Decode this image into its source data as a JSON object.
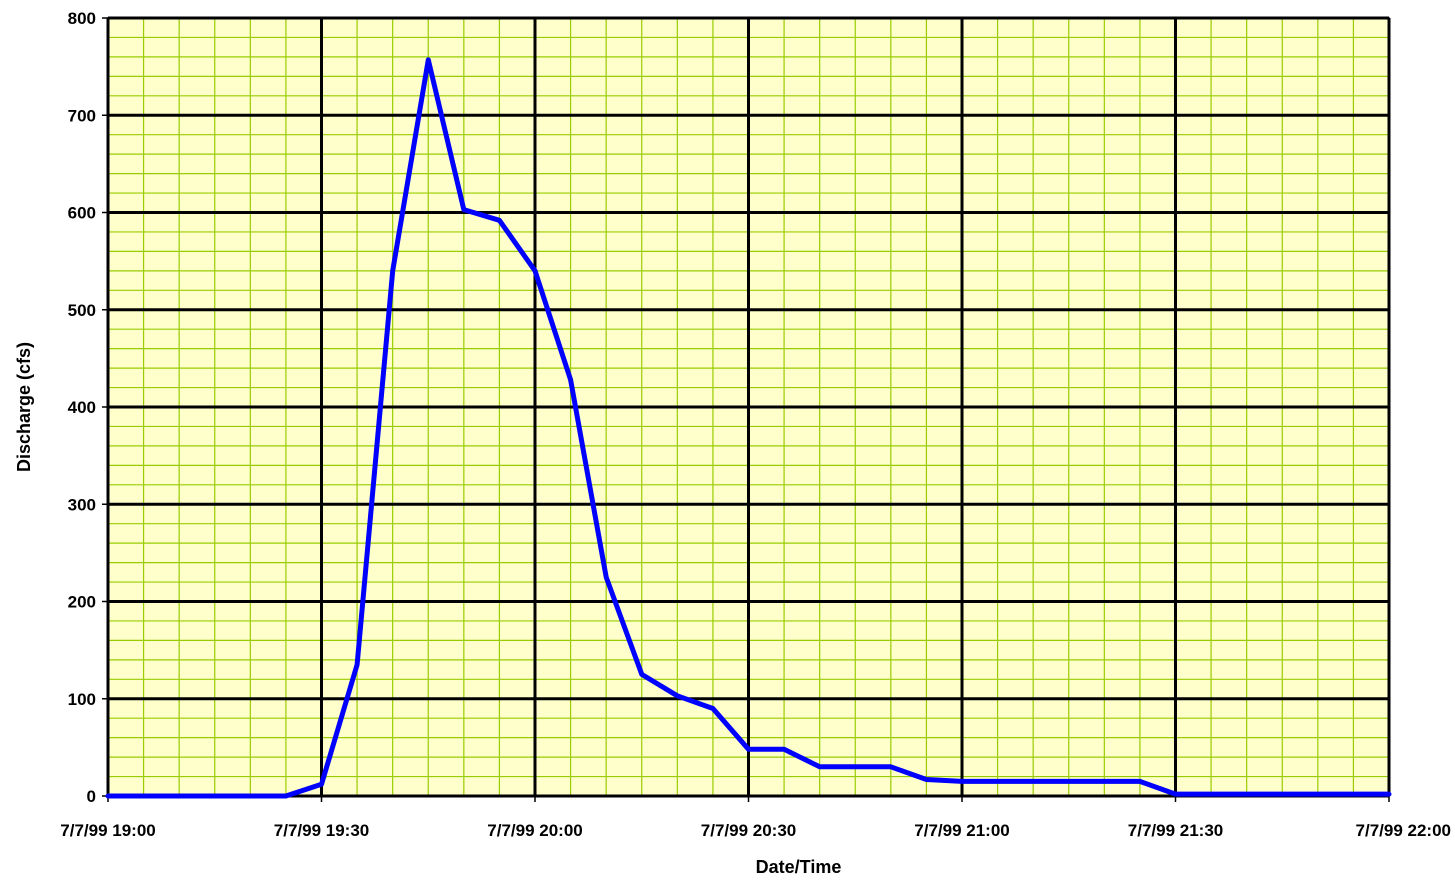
{
  "chart_data": {
    "type": "line",
    "title": "",
    "xlabel": "Date/Time",
    "ylabel": "Discharge (cfs)",
    "xlim": [
      "7/7/99 19:00",
      "7/7/99 22:00"
    ],
    "ylim": [
      0,
      800
    ],
    "y_ticks": [
      0,
      100,
      200,
      300,
      400,
      500,
      600,
      700,
      800
    ],
    "x_ticks": [
      {
        "time": "7/7/99 19:00",
        "label": "7/7/99 19:00"
      },
      {
        "time": "7/7/99 19:30",
        "label": "7/7/99 19:30"
      },
      {
        "time": "7/7/99 20:00",
        "label": "7/7/99 20:00"
      },
      {
        "time": "7/7/99 20:30",
        "label": "7/7/99 20:30"
      },
      {
        "time": "7/7/99 21:00",
        "label": "7/7/99 21:00"
      },
      {
        "time": "7/7/99 21:30",
        "label": "7/7/99 21:30"
      },
      {
        "time": "7/7/99 22:00",
        "label": "7/7/99 22:00"
      }
    ],
    "grid": {
      "major": true,
      "minor": true
    },
    "colors": {
      "plot_background": "#ffffcc",
      "minor_grid": "#99cc00",
      "major_grid": "#000000",
      "line": "#0000ff"
    },
    "series": [
      {
        "x": [
          "7/7/99 19:00",
          "7/7/99 19:25",
          "7/7/99 19:30",
          "7/7/99 19:35",
          "7/7/99 19:40",
          "7/7/99 19:45",
          "7/7/99 19:50",
          "7/7/99 19:55",
          "7/7/99 20:00",
          "7/7/99 20:05",
          "7/7/99 20:10",
          "7/7/99 20:15",
          "7/7/99 20:20",
          "7/7/99 20:25",
          "7/7/99 20:30",
          "7/7/99 20:35",
          "7/7/99 20:40",
          "7/7/99 20:45",
          "7/7/99 20:50",
          "7/7/99 20:55",
          "7/7/99 21:00",
          "7/7/99 21:05",
          "7/7/99 21:10",
          "7/7/99 21:15",
          "7/7/99 21:20",
          "7/7/99 21:25",
          "7/7/99 21:30",
          "7/7/99 21:35",
          "7/7/99 21:40",
          "7/7/99 21:45",
          "7/7/99 21:50",
          "7/7/99 21:55",
          "7/7/99 22:00"
        ],
        "y": [
          0,
          0,
          12,
          135,
          540,
          757,
          603,
          592,
          540,
          428,
          225,
          125,
          103,
          90,
          48,
          48,
          30,
          30,
          30,
          17,
          15,
          15,
          15,
          15,
          15,
          15,
          2,
          2,
          2,
          2,
          2,
          2,
          2
        ]
      }
    ]
  }
}
